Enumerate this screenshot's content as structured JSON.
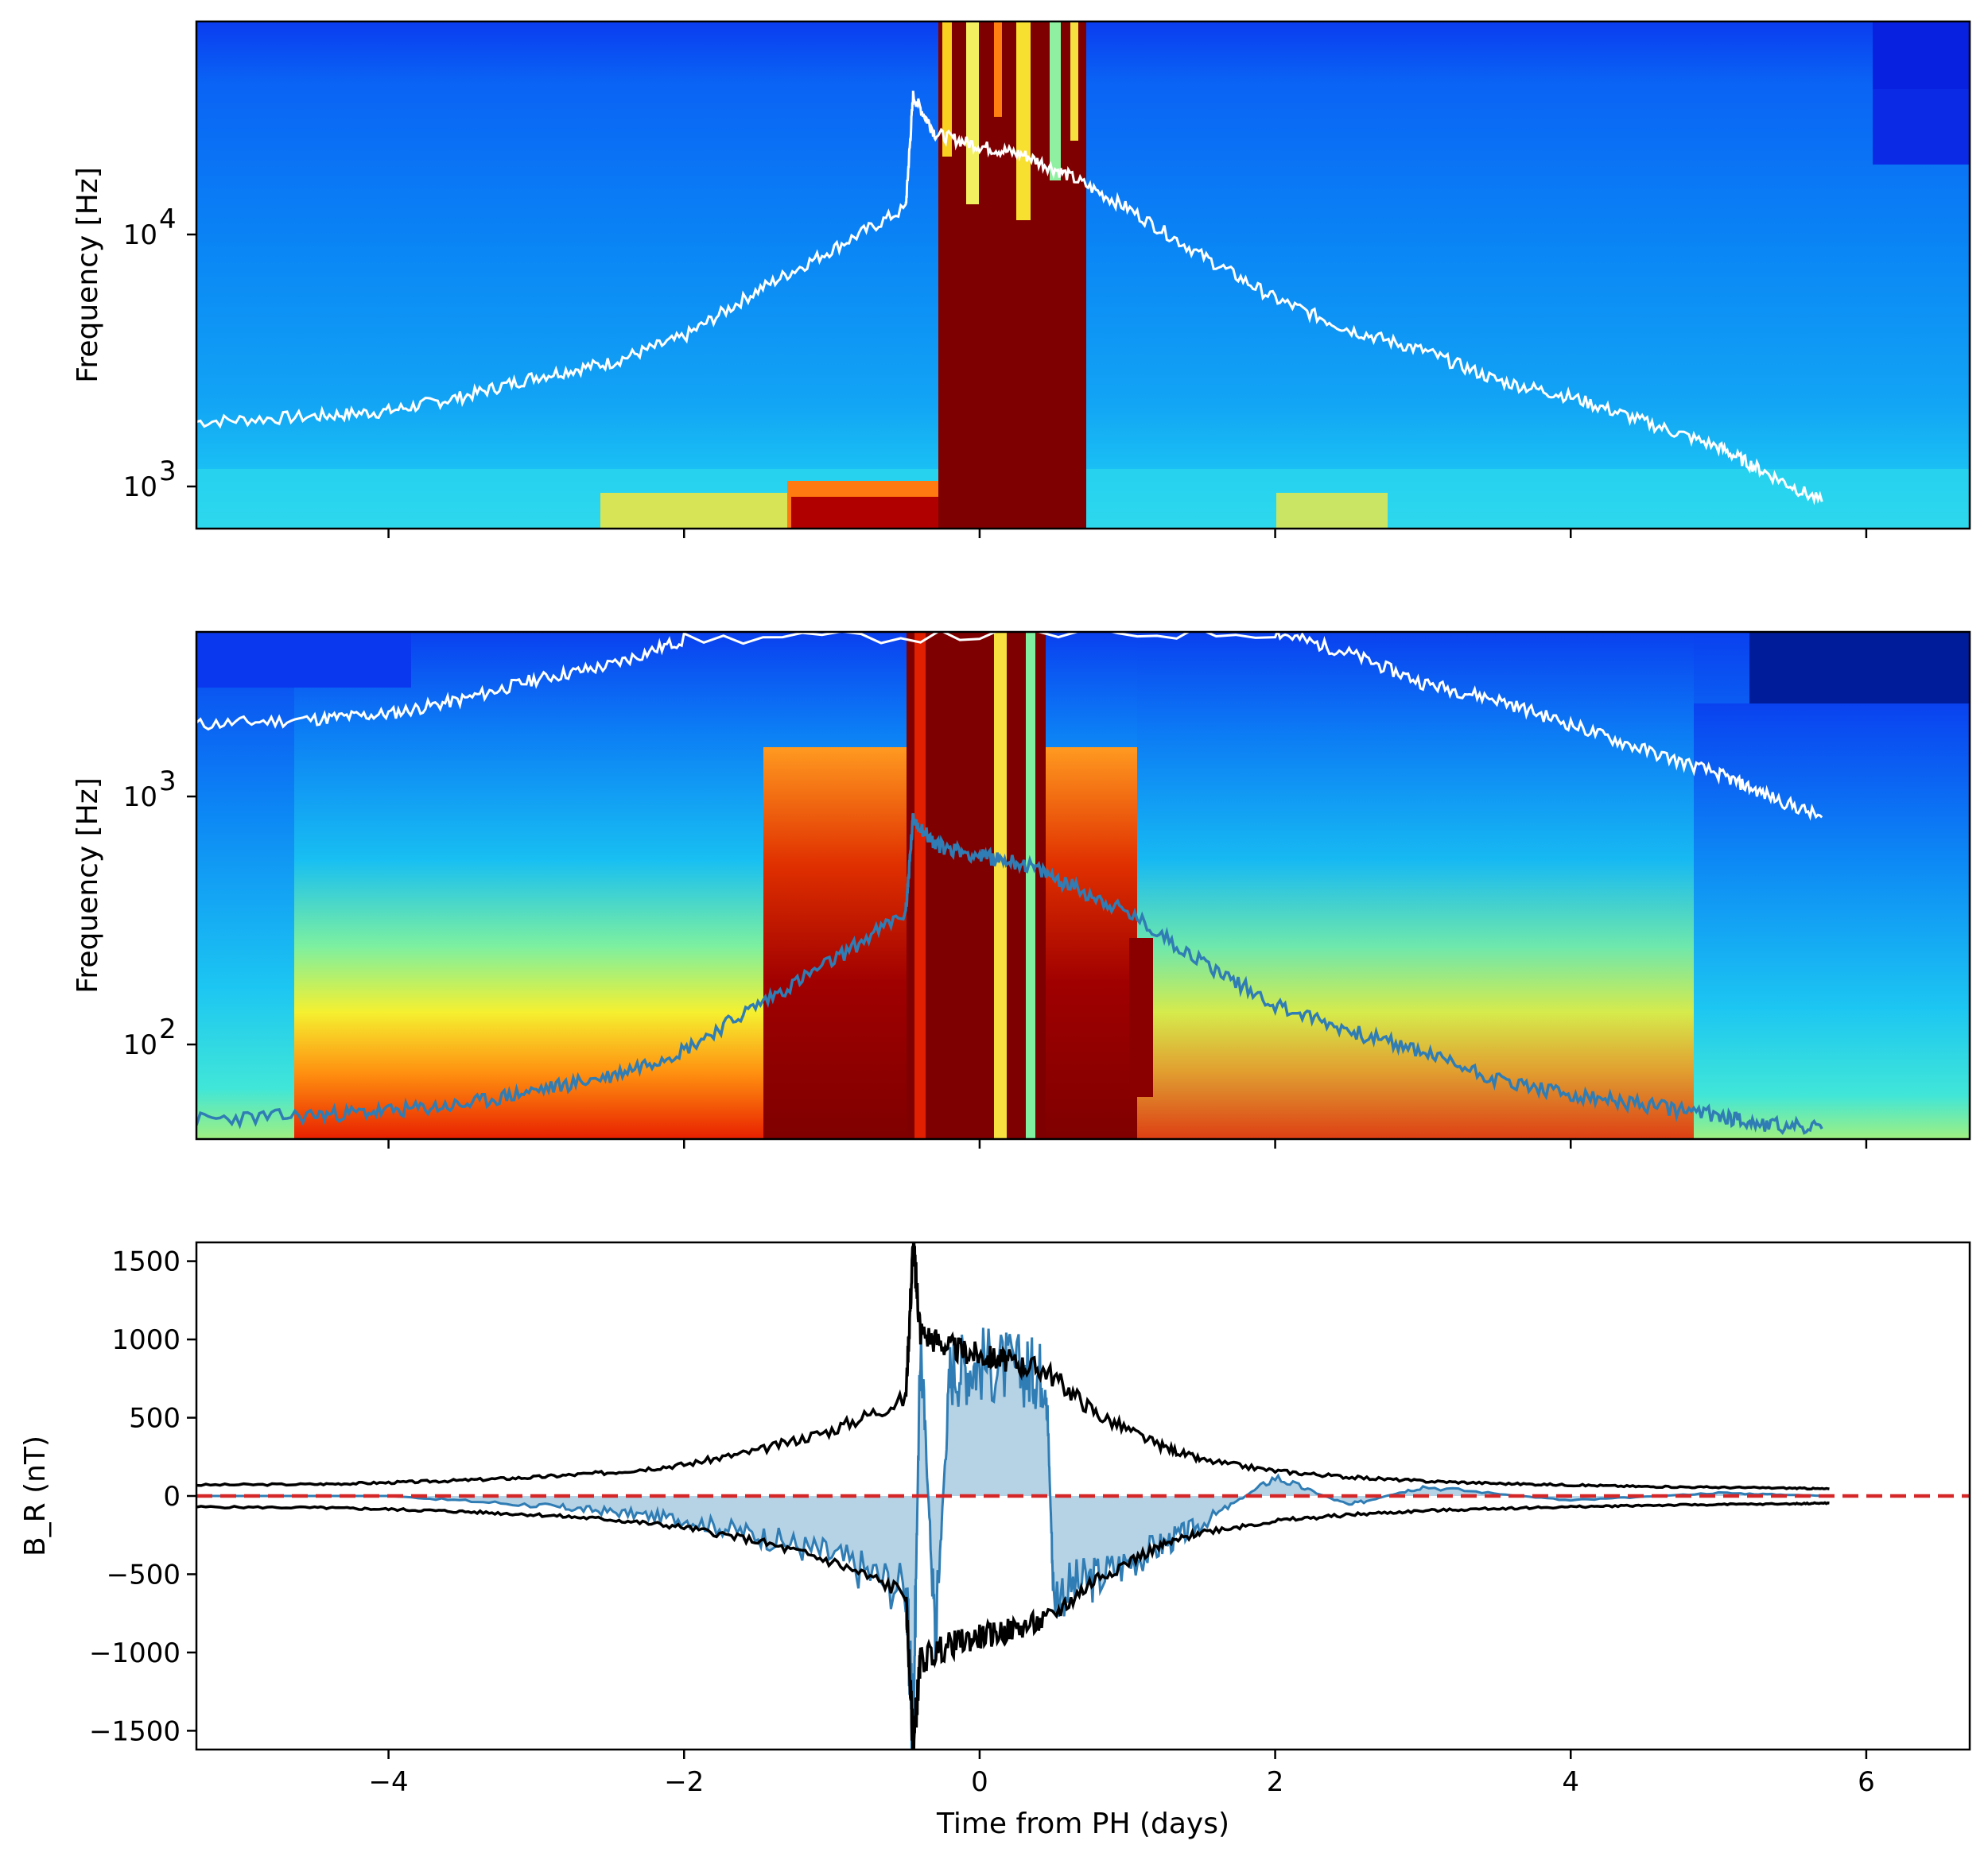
{
  "chart_data": [
    {
      "type": "heatmap",
      "panel": "top",
      "ylabel": "Frequency [Hz]",
      "yscale": "log",
      "ylim": [
        700,
        80000
      ],
      "xlim": [
        -5.3,
        6.7
      ],
      "yticks": [
        {
          "value": 1000,
          "base": "10",
          "exp": "3"
        },
        {
          "value": 10000,
          "base": "10",
          "exp": "4"
        }
      ],
      "xticks": [
        -4,
        -2,
        0,
        2,
        4,
        6
      ],
      "overlay": {
        "name": "plasma frequency trace",
        "color": "#ffffff",
        "x": [
          -5.3,
          -4.5,
          -4.0,
          -3.5,
          -3.0,
          -2.5,
          -2.0,
          -1.5,
          -1.0,
          -0.5,
          -0.45,
          -0.3,
          0,
          0.3,
          0.6,
          1.0,
          1.5,
          2.0,
          2.5,
          3.0,
          3.5,
          4.0,
          4.5,
          5.0,
          5.3,
          5.7
        ],
        "y": [
          1900,
          2000,
          2100,
          2400,
          2900,
          3300,
          4200,
          6500,
          9500,
          14000,
          40000,
          28000,
          25000,
          23000,
          19000,
          14000,
          9000,
          6000,
          4500,
          3700,
          2800,
          2400,
          1900,
          1500,
          1200,
          900
        ]
      },
      "band": {
        "x_start": -0.25,
        "x_end": 0.75,
        "color": "#7f0000"
      }
    },
    {
      "type": "heatmap",
      "panel": "middle",
      "ylabel": "Frequency [Hz]",
      "yscale": "log",
      "ylim": [
        40,
        4500
      ],
      "xlim": [
        -5.3,
        6.7
      ],
      "yticks": [
        {
          "value": 100,
          "base": "10",
          "exp": "2"
        },
        {
          "value": 1000,
          "base": "10",
          "exp": "3"
        }
      ],
      "xticks": [
        -4,
        -2,
        0,
        2,
        4,
        6
      ],
      "overlays": [
        {
          "name": "upper trace",
          "color": "#ffffff",
          "x": [
            -5.3,
            -4.5,
            -4.0,
            -3.5,
            -3.0,
            -2.5,
            -2.0,
            2.0,
            2.5,
            3.0,
            3.5,
            4.0,
            4.5,
            5.0,
            5.3,
            5.7
          ],
          "y": [
            1900,
            2000,
            2100,
            2400,
            2900,
            3300,
            4200,
            4500,
            3700,
            2800,
            2400,
            1900,
            1500,
            1200,
            1000,
            800
          ]
        },
        {
          "name": "lower trace",
          "color": "#2f7db4",
          "x": [
            -5.3,
            -4.5,
            -4.0,
            -3.5,
            -3.0,
            -2.5,
            -2.0,
            -1.5,
            -1.0,
            -0.5,
            -0.45,
            -0.3,
            0,
            0.3,
            0.6,
            1.0,
            1.5,
            2.0,
            2.5,
            3.0,
            3.5,
            4.0,
            4.5,
            5.0,
            5.3,
            5.7
          ],
          "y": [
            48,
            50,
            52,
            55,
            63,
            72,
            92,
            140,
            210,
            330,
            800,
            620,
            560,
            520,
            430,
            330,
            210,
            140,
            110,
            90,
            70,
            60,
            55,
            50,
            46,
            44
          ]
        }
      ]
    },
    {
      "type": "line",
      "panel": "bottom",
      "xlabel": "Time from PH (days)",
      "ylabel": "B_R (nT)",
      "xlim": [
        -5.3,
        6.7
      ],
      "ylim": [
        -1620,
        1620
      ],
      "xticks": [
        -4,
        -2,
        0,
        2,
        4,
        6
      ],
      "xtick_labels": [
        "−4",
        "−2",
        "0",
        "2",
        "4",
        "6"
      ],
      "yticks": [
        -1500,
        -1000,
        -500,
        0,
        500,
        1000,
        1500
      ],
      "ytick_labels": [
        "−1500",
        "−1000",
        "−500",
        "0",
        "500",
        "1000",
        "1500"
      ],
      "series": [
        {
          "name": "|B| envelope (upper)",
          "color": "#000000",
          "x": [
            -5.3,
            -4.5,
            -4.0,
            -3.5,
            -3.0,
            -2.5,
            -2.0,
            -1.5,
            -1.0,
            -0.5,
            -0.45,
            -0.4,
            -0.2,
            0,
            0.2,
            0.45,
            0.8,
            1.2,
            1.5,
            2.0,
            2.5,
            3.0,
            3.5,
            4.0,
            4.5,
            5.0,
            5.5,
            5.75
          ],
          "y": [
            70,
            75,
            85,
            100,
            120,
            150,
            200,
            290,
            420,
            620,
            1600,
            1050,
            950,
            900,
            860,
            800,
            520,
            330,
            230,
            160,
            120,
            95,
            80,
            70,
            60,
            55,
            50,
            45
          ]
        },
        {
          "name": "|B| envelope (lower)",
          "color": "#000000",
          "x": [
            -5.3,
            -4.5,
            -4.0,
            -3.5,
            -3.0,
            -2.5,
            -2.0,
            -1.5,
            -1.0,
            -0.5,
            -0.45,
            -0.4,
            -0.2,
            0,
            0.2,
            0.45,
            0.8,
            1.2,
            1.5,
            2.0,
            2.5,
            3.0,
            3.5,
            4.0,
            4.5,
            5.0,
            5.5,
            5.75
          ],
          "y": [
            -70,
            -75,
            -85,
            -100,
            -120,
            -150,
            -200,
            -290,
            -420,
            -620,
            -1600,
            -1050,
            -950,
            -900,
            -860,
            -800,
            -520,
            -330,
            -230,
            -160,
            -120,
            -95,
            -80,
            -70,
            -60,
            -55,
            -50,
            -45
          ]
        },
        {
          "name": "B_R",
          "color": "#2f7db4",
          "x": [
            -5.3,
            -4.0,
            -3.0,
            -2.5,
            -2.0,
            -1.5,
            -1.0,
            -0.5,
            -0.45,
            -0.4,
            -0.3,
            -0.2,
            0,
            0.3,
            0.45,
            0.5,
            0.8,
            1.2,
            1.5,
            2.0,
            2.5,
            3.0,
            4.0,
            5.0,
            5.75
          ],
          "y": [
            0,
            0,
            -60,
            -100,
            -150,
            -250,
            -380,
            -600,
            -1500,
            1000,
            -900,
            800,
            850,
            800,
            780,
            -620,
            -520,
            -330,
            -180,
            120,
            -60,
            60,
            -30,
            20,
            0
          ]
        },
        {
          "name": "zero reference",
          "color": "#d62728",
          "dashed": true,
          "x": [
            -5.3,
            6.7
          ],
          "y": [
            0,
            0
          ]
        }
      ]
    }
  ]
}
